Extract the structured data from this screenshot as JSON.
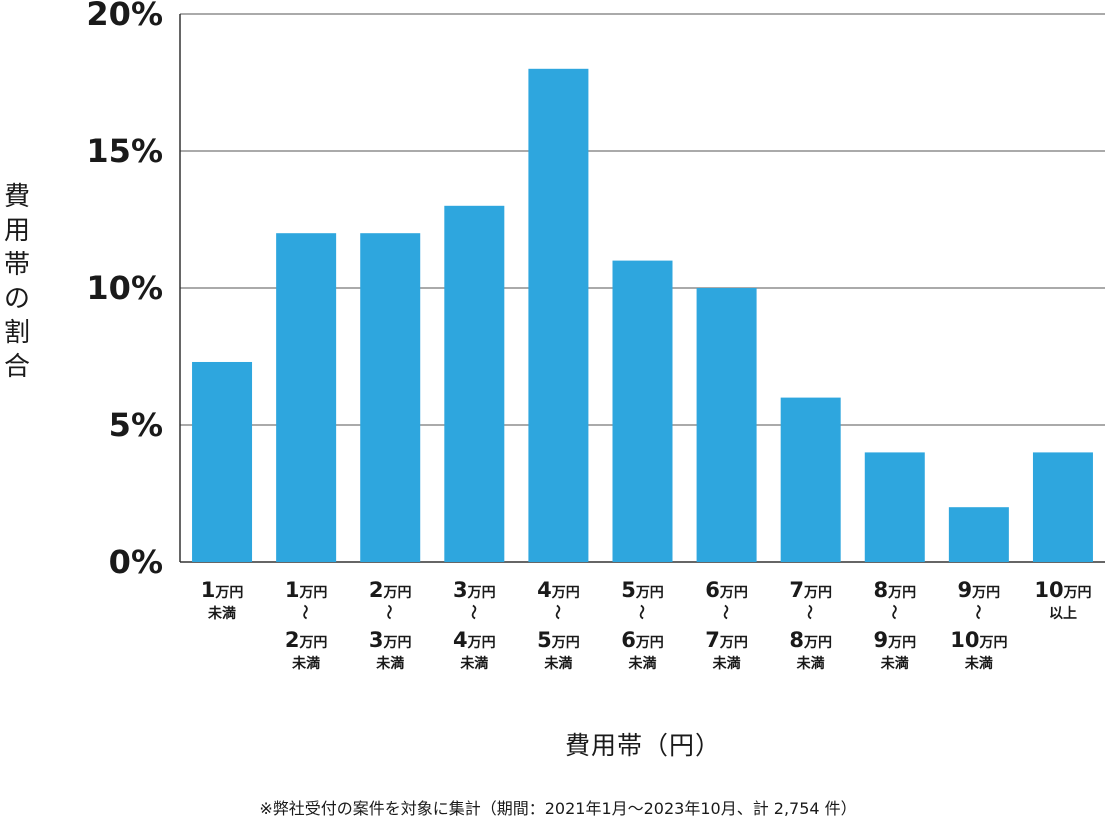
{
  "chart_data": {
    "type": "bar",
    "title": "",
    "ylabel": "費用帯の割合",
    "xlabel": "費用帯（円）",
    "footnote": "※弊社受付の案件を対象に集計（期間：2021年1月～2023年10月、計 2,754 件）",
    "ylim": [
      0,
      20
    ],
    "yticks": [
      "0%",
      "5%",
      "10%",
      "15%",
      "20%"
    ],
    "ytick_values": [
      0,
      5,
      10,
      15,
      20
    ],
    "grid": true,
    "bar_color": "#2ea6de",
    "categories": [
      {
        "from": "",
        "to": "1",
        "suffix": "未満"
      },
      {
        "from": "1",
        "to": "2",
        "suffix": "未満"
      },
      {
        "from": "2",
        "to": "3",
        "suffix": "未満"
      },
      {
        "from": "3",
        "to": "4",
        "suffix": "未満"
      },
      {
        "from": "4",
        "to": "5",
        "suffix": "未満"
      },
      {
        "from": "5",
        "to": "6",
        "suffix": "未満"
      },
      {
        "from": "6",
        "to": "7",
        "suffix": "未満"
      },
      {
        "from": "7",
        "to": "8",
        "suffix": "未満"
      },
      {
        "from": "8",
        "to": "9",
        "suffix": "未満"
      },
      {
        "from": "9",
        "to": "10",
        "suffix": "未満"
      },
      {
        "from": "",
        "to": "10",
        "suffix": "以上"
      }
    ],
    "unit": "万円",
    "range_mark": "～",
    "values": [
      7.3,
      12,
      12,
      13,
      18,
      11,
      10,
      6,
      4,
      2,
      4
    ]
  }
}
